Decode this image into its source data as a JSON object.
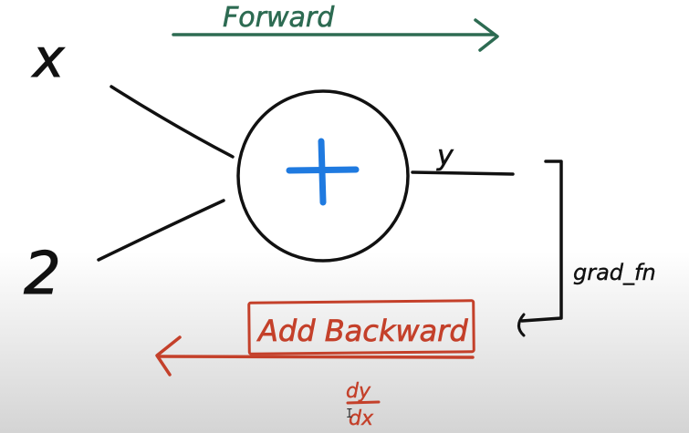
{
  "colors": {
    "ink": "#111111",
    "forward": "#2d6b52",
    "backward": "#c4402a",
    "operator": "#1f7ae0",
    "background_top": "#ffffff",
    "background_bottom": "#d4d4d4"
  },
  "labels": {
    "forward": "Forward",
    "input_x": "x",
    "input_two": "2",
    "output_y": "y",
    "grad_fn": "grad_fn",
    "add_backward": "Add Backward",
    "dy": "dy",
    "dx": "dx"
  },
  "operator": {
    "symbol": "plus"
  }
}
